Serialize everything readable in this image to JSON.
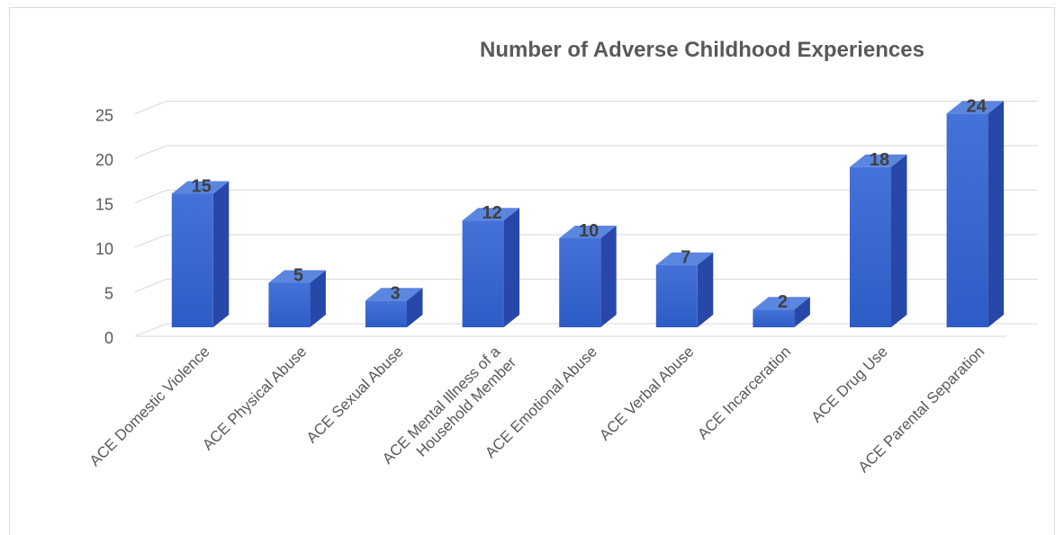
{
  "chart_data": {
    "type": "bar",
    "title": "Number of Adverse Childhood Experiences",
    "categories": [
      [
        "ACE Domestic Violence"
      ],
      [
        "ACE Physical Abuse"
      ],
      [
        "ACE Sexual Abuse"
      ],
      [
        "ACE Mental Illness of a",
        "Household Member"
      ],
      [
        "ACE Emotional Abuse"
      ],
      [
        "ACE Verbal Abuse"
      ],
      [
        "ACE Incarceration"
      ],
      [
        "ACE Drug Use"
      ],
      [
        "ACE Parental Separation"
      ]
    ],
    "values": [
      15,
      5,
      3,
      12,
      10,
      7,
      2,
      18,
      24
    ],
    "yticks": [
      0,
      5,
      10,
      15,
      20,
      25
    ],
    "ylim": [
      0,
      25
    ],
    "grid": true,
    "legend": "none",
    "colors": {
      "bar_front": "#3a67cf",
      "bar_side": "#2748a8",
      "bar_top": "#5b86e0",
      "grid": "#d9d9d9",
      "text": "#595959"
    }
  }
}
